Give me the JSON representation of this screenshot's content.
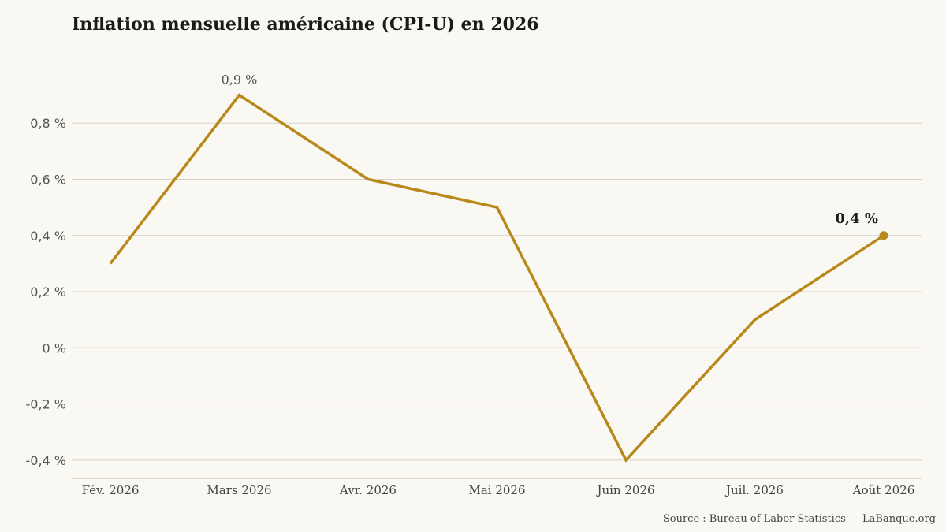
{
  "chart_data": {
    "type": "line",
    "title": "Inflation mensuelle américaine (CPI-U) en 2026",
    "categories": [
      "Fév. 2026",
      "Mars 2026",
      "Avr. 2026",
      "Mai 2026",
      "Juin 2026",
      "Juil. 2026",
      "Août 2026"
    ],
    "series": [
      {
        "values": [
          0.3,
          0.9,
          0.6,
          0.5,
          -0.4,
          0.1,
          0.4
        ]
      }
    ],
    "yticks": [
      0.8,
      0.6,
      0.4,
      0.2,
      0,
      -0.2,
      -0.4
    ],
    "ytick_labels": [
      "0,8 %",
      "0,6 %",
      "0,4 %",
      "0,2 %",
      "0 %",
      "-0,2 %",
      "-0,4 %"
    ],
    "ylim": [
      -0.465,
      1.07
    ],
    "annotations": [
      {
        "index": 1,
        "text": "0,9 %"
      },
      {
        "index": 6,
        "text": "0,4 %"
      }
    ],
    "grid": true,
    "line_color": "#b8891a",
    "source": "Source : Bureau of Labor Statistics — LaBanque.org"
  }
}
